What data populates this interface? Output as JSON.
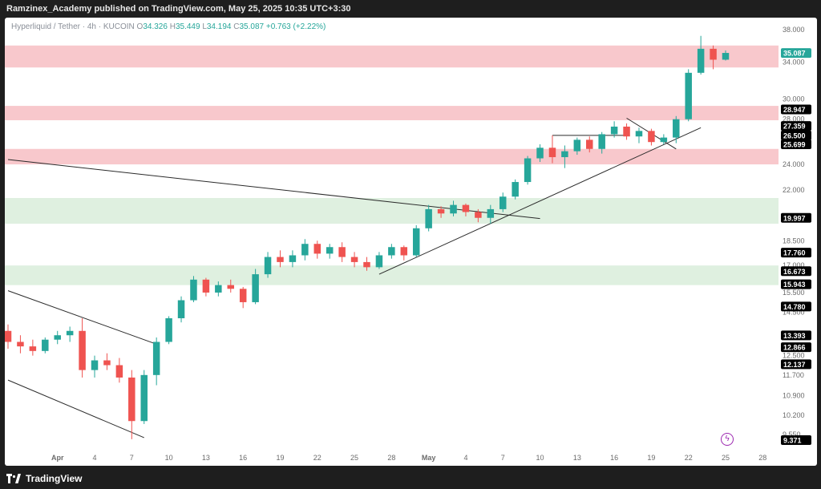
{
  "header": {
    "publisher_text": "Ramzinex_Academy published on TradingView.com, May 25, 2025 10:35 UTC+3:30"
  },
  "legend": {
    "symbol": "Hyperliquid / Tether · 4h · KUCOIN",
    "open_label": "O",
    "open": "34.326",
    "high_label": "H",
    "high": "35.449",
    "low_label": "L",
    "low": "34.194",
    "close_label": "C",
    "close": "35.087",
    "change": "+0.763 (+2.22%)"
  },
  "footer": {
    "brand": "TradingView"
  },
  "icons": {
    "brand_logo": "tradingview-logo-icon",
    "flash": "lightning-icon"
  },
  "colors": {
    "up": "#26a69a",
    "down": "#ef5350",
    "resistance_zone": "#f8c8cc",
    "support_zone": "#dff0e0",
    "label_bg": "#000000",
    "current_price_bg": "#26a69a"
  },
  "chart_data": {
    "type": "candlestick",
    "timeframe": "4h",
    "x_ticks": [
      "Apr",
      "4",
      "7",
      "10",
      "13",
      "16",
      "19",
      "22",
      "25",
      "28",
      "May",
      "4",
      "7",
      "10",
      "13",
      "16",
      "19",
      "22",
      "25",
      "28"
    ],
    "y_ticks": [
      "38.000",
      "34.000",
      "30.000",
      "28.000",
      "24.000",
      "22.000",
      "18.500",
      "17.000",
      "15.500",
      "14.500",
      "12.500",
      "11.700",
      "10.900",
      "10.200",
      "9.550"
    ],
    "price_labels": [
      "35.087",
      "28.947",
      "27.359",
      "26.500",
      "25.699",
      "19.997",
      "17.760",
      "16.673",
      "15.943",
      "14.780",
      "13.393",
      "12.866",
      "12.137",
      "9.371"
    ],
    "current_price": 35.087,
    "resistance_zones": [
      [
        33.4,
        36.0
      ],
      [
        27.9,
        29.3
      ],
      [
        24.0,
        25.3
      ]
    ],
    "support_zones": [
      [
        19.6,
        21.4
      ],
      [
        15.9,
        17.0
      ]
    ],
    "trendlines": [
      {
        "from": [
          "Mar 28",
          24.4
        ],
        "to": [
          "May 10",
          19.95
        ]
      },
      {
        "from": [
          "Mar 28",
          15.6
        ],
        "to": [
          "Apr 9",
          13.0
        ]
      },
      {
        "from": [
          "Mar 28",
          11.5
        ],
        "to": [
          "Apr 8",
          9.45
        ]
      },
      {
        "from": [
          "Apr 27",
          16.5
        ],
        "to": [
          "May 23",
          27.2
        ]
      },
      {
        "from": [
          "May 11",
          26.5
        ],
        "to": [
          "May 17",
          26.5
        ]
      },
      {
        "from": [
          "May 17",
          28.1
        ],
        "to": [
          "May 21",
          25.3
        ]
      }
    ],
    "ohlc": [
      [
        "Mar 28",
        13.6,
        13.9,
        12.8,
        13.1
      ],
      [
        "Mar 29",
        13.1,
        13.4,
        12.6,
        12.9
      ],
      [
        "Mar 30",
        12.9,
        13.2,
        12.5,
        12.7
      ],
      [
        "Mar 31",
        12.7,
        13.3,
        12.6,
        13.2
      ],
      [
        "Apr 1",
        13.2,
        13.6,
        13.0,
        13.4
      ],
      [
        "Apr 2",
        13.4,
        13.8,
        13.1,
        13.6
      ],
      [
        "Apr 3",
        13.6,
        14.2,
        11.6,
        11.9
      ],
      [
        "Apr 4",
        11.9,
        12.5,
        11.6,
        12.3
      ],
      [
        "Apr 5",
        12.3,
        12.6,
        11.9,
        12.1
      ],
      [
        "Apr 6",
        12.1,
        12.4,
        11.4,
        11.6
      ],
      [
        "Apr 7",
        11.6,
        11.9,
        9.4,
        10.0
      ],
      [
        "Apr 8",
        10.0,
        11.9,
        9.9,
        11.7
      ],
      [
        "Apr 9",
        11.7,
        13.3,
        11.3,
        13.1
      ],
      [
        "Apr 10",
        13.1,
        14.3,
        13.0,
        14.2
      ],
      [
        "Apr 11",
        14.2,
        15.3,
        14.0,
        15.1
      ],
      [
        "Apr 12",
        15.1,
        16.4,
        15.0,
        16.2
      ],
      [
        "Apr 13",
        16.2,
        16.3,
        15.3,
        15.5
      ],
      [
        "Apr 14",
        15.5,
        16.1,
        15.3,
        15.9
      ],
      [
        "Apr 15",
        15.9,
        16.2,
        15.5,
        15.7
      ],
      [
        "Apr 16",
        15.7,
        15.8,
        14.7,
        15.0
      ],
      [
        "Apr 17",
        15.0,
        16.8,
        14.9,
        16.5
      ],
      [
        "Apr 18",
        16.5,
        17.8,
        16.3,
        17.5
      ],
      [
        "Apr 19",
        17.5,
        17.9,
        16.9,
        17.2
      ],
      [
        "Apr 20",
        17.2,
        17.9,
        16.9,
        17.6
      ],
      [
        "Apr 21",
        17.6,
        18.6,
        17.3,
        18.3
      ],
      [
        "Apr 22",
        18.3,
        18.5,
        17.4,
        17.7
      ],
      [
        "Apr 23",
        17.7,
        18.3,
        17.4,
        18.1
      ],
      [
        "Apr 24",
        18.1,
        18.4,
        17.2,
        17.5
      ],
      [
        "Apr 25",
        17.5,
        17.8,
        16.9,
        17.2
      ],
      [
        "Apr 26",
        17.2,
        17.5,
        16.7,
        16.9
      ],
      [
        "Apr 27",
        16.9,
        17.8,
        16.8,
        17.6
      ],
      [
        "Apr 28",
        17.6,
        18.3,
        17.4,
        18.1
      ],
      [
        "Apr 29",
        18.1,
        18.2,
        17.3,
        17.6
      ],
      [
        "Apr 30",
        17.6,
        19.5,
        17.5,
        19.3
      ],
      [
        "May 1",
        19.3,
        20.9,
        19.1,
        20.6
      ],
      [
        "May 2",
        20.6,
        20.8,
        20.0,
        20.3
      ],
      [
        "May 3",
        20.3,
        21.2,
        20.1,
        20.9
      ],
      [
        "May 4",
        20.9,
        21.0,
        20.1,
        20.4
      ],
      [
        "May 5",
        20.4,
        20.6,
        19.7,
        20.0
      ],
      [
        "May 6",
        20.0,
        20.9,
        19.6,
        20.6
      ],
      [
        "May 7",
        20.6,
        21.8,
        20.4,
        21.5
      ],
      [
        "May 8",
        21.5,
        22.8,
        21.3,
        22.6
      ],
      [
        "May 9",
        22.6,
        24.7,
        22.4,
        24.5
      ],
      [
        "May 10",
        24.5,
        25.7,
        24.2,
        25.4
      ],
      [
        "May 11",
        25.4,
        26.5,
        24.1,
        24.6
      ],
      [
        "May 12",
        24.6,
        25.6,
        23.7,
        25.1
      ],
      [
        "May 13",
        25.1,
        26.3,
        24.8,
        26.1
      ],
      [
        "May 14",
        26.1,
        26.4,
        25.0,
        25.3
      ],
      [
        "May 15",
        25.3,
        26.8,
        24.9,
        26.6
      ],
      [
        "May 16",
        26.6,
        27.8,
        26.3,
        27.3
      ],
      [
        "May 17",
        27.3,
        27.6,
        26.1,
        26.4
      ],
      [
        "May 18",
        26.4,
        27.2,
        25.8,
        26.9
      ],
      [
        "May 19",
        26.9,
        27.1,
        25.6,
        25.9
      ],
      [
        "May 20",
        25.9,
        26.6,
        25.7,
        26.3
      ],
      [
        "May 21",
        26.3,
        28.3,
        25.8,
        28.0
      ],
      [
        "May 22",
        28.0,
        33.2,
        27.8,
        32.8
      ],
      [
        "May 23",
        32.8,
        37.2,
        32.6,
        35.6
      ],
      [
        "May 24",
        35.6,
        36.0,
        33.2,
        34.3
      ],
      [
        "May 25",
        34.3,
        35.4,
        34.2,
        35.1
      ]
    ]
  }
}
